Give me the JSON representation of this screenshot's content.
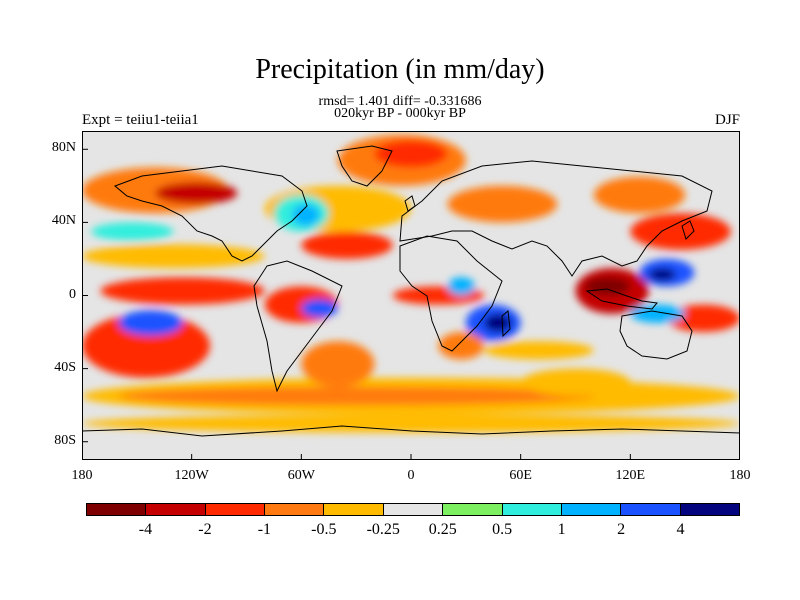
{
  "title": "Precipitation (in mm/day)",
  "stats": "rmsd= 1.401 diff= -0.331686",
  "period": "020kyr BP - 000kyr BP",
  "expt": "Expt = teiiu1-teiia1",
  "season": "DJF",
  "lat_ticks": [
    "80N",
    "40N",
    "0",
    "40S",
    "80S"
  ],
  "lon_ticks": [
    "180",
    "120W",
    "60W",
    "0",
    "60E",
    "120E",
    "180"
  ],
  "colorbar": {
    "colors": [
      "#7f0000",
      "#c40000",
      "#ff2a00",
      "#ff7a10",
      "#ffbb00",
      "#e5e5e5",
      "#7cf060",
      "#30eedd",
      "#00b2ff",
      "#1a52ff",
      "#04057e"
    ],
    "labels": [
      "-4",
      "-2",
      "-1",
      "-0.5",
      "-0.25",
      "0.25",
      "0.5",
      "1",
      "2",
      "4"
    ]
  },
  "chart_data": {
    "type": "heatmap",
    "title": "Precipitation (in mm/day)",
    "subtitle": "020kyr BP - 000kyr BP",
    "annotations": [
      "rmsd= 1.401 diff= -0.331686",
      "Expt = teiiu1-teiia1",
      "DJF"
    ],
    "x_range": [
      -180,
      180
    ],
    "y_range": [
      -90,
      90
    ],
    "x_ticks": [
      "180",
      "120W",
      "60W",
      "0",
      "60E",
      "120E",
      "180"
    ],
    "y_ticks": [
      "80N",
      "40N",
      "0",
      "40S",
      "80S"
    ],
    "levels": [
      -4,
      -2,
      -1,
      -0.5,
      -0.25,
      0.25,
      0.5,
      1,
      2,
      4
    ],
    "background_class": 5,
    "regions": [
      {
        "class": 3,
        "lon": [
          -180,
          -100
        ],
        "lat": [
          45,
          70
        ]
      },
      {
        "class": 1,
        "lon": [
          -140,
          -95
        ],
        "lat": [
          50,
          62
        ]
      },
      {
        "class": 4,
        "lon": [
          -180,
          -80
        ],
        "lat": [
          15,
          28
        ]
      },
      {
        "class": 7,
        "lon": [
          -175,
          -130
        ],
        "lat": [
          30,
          40
        ]
      },
      {
        "class": 2,
        "lon": [
          -170,
          -80
        ],
        "lat": [
          -5,
          10
        ]
      },
      {
        "class": 2,
        "lon": [
          -180,
          -110
        ],
        "lat": [
          -45,
          -10
        ]
      },
      {
        "class": 9,
        "lon": [
          -160,
          -125
        ],
        "lat": [
          -22,
          -8
        ]
      },
      {
        "class": 4,
        "lon": [
          -180,
          180
        ],
        "lat": [
          -65,
          -45
        ]
      },
      {
        "class": 3,
        "lon": [
          -160,
          100
        ],
        "lat": [
          -60,
          -50
        ]
      },
      {
        "class": 4,
        "lon": [
          -180,
          180
        ],
        "lat": [
          -75,
          -65
        ]
      },
      {
        "class": 3,
        "lon": [
          -40,
          30
        ],
        "lat": [
          60,
          88
        ]
      },
      {
        "class": 2,
        "lon": [
          -20,
          20
        ],
        "lat": [
          70,
          85
        ]
      },
      {
        "class": 4,
        "lon": [
          -80,
          0
        ],
        "lat": [
          35,
          60
        ]
      },
      {
        "class": 7,
        "lon": [
          -75,
          -45
        ],
        "lat": [
          35,
          55
        ]
      },
      {
        "class": 8,
        "lon": [
          -65,
          -50
        ],
        "lat": [
          38,
          50
        ]
      },
      {
        "class": 2,
        "lon": [
          -60,
          -10
        ],
        "lat": [
          20,
          35
        ]
      },
      {
        "class": 2,
        "lon": [
          -80,
          -40
        ],
        "lat": [
          -15,
          5
        ]
      },
      {
        "class": 9,
        "lon": [
          -60,
          -40
        ],
        "lat": [
          -12,
          -2
        ]
      },
      {
        "class": 3,
        "lon": [
          -60,
          -20
        ],
        "lat": [
          -50,
          -25
        ]
      },
      {
        "class": 2,
        "lon": [
          -10,
          40
        ],
        "lat": [
          -5,
          5
        ]
      },
      {
        "class": 9,
        "lon": [
          30,
          60
        ],
        "lat": [
          -25,
          -5
        ]
      },
      {
        "class": 10,
        "lon": [
          40,
          55
        ],
        "lat": [
          -20,
          -10
        ]
      },
      {
        "class": 3,
        "lon": [
          15,
          40
        ],
        "lat": [
          -35,
          -20
        ]
      },
      {
        "class": 4,
        "lon": [
          40,
          100
        ],
        "lat": [
          -35,
          -25
        ]
      },
      {
        "class": 8,
        "lon": [
          20,
          35
        ],
        "lat": [
          0,
          10
        ]
      },
      {
        "class": 1,
        "lon": [
          90,
          130
        ],
        "lat": [
          -10,
          15
        ]
      },
      {
        "class": 0,
        "lon": [
          95,
          120
        ],
        "lat": [
          0,
          10
        ]
      },
      {
        "class": 9,
        "lon": [
          125,
          155
        ],
        "lat": [
          5,
          20
        ]
      },
      {
        "class": 10,
        "lon": [
          130,
          145
        ],
        "lat": [
          8,
          15
        ]
      },
      {
        "class": 2,
        "lon": [
          120,
          175
        ],
        "lat": [
          25,
          45
        ]
      },
      {
        "class": 3,
        "lon": [
          100,
          150
        ],
        "lat": [
          45,
          65
        ]
      },
      {
        "class": 2,
        "lon": [
          140,
          180
        ],
        "lat": [
          -20,
          -5
        ]
      },
      {
        "class": 8,
        "lon": [
          120,
          150
        ],
        "lat": [
          -15,
          -5
        ]
      },
      {
        "class": 4,
        "lon": [
          60,
          120
        ],
        "lat": [
          -55,
          -40
        ]
      },
      {
        "class": 3,
        "lon": [
          20,
          80
        ],
        "lat": [
          40,
          60
        ]
      }
    ]
  }
}
